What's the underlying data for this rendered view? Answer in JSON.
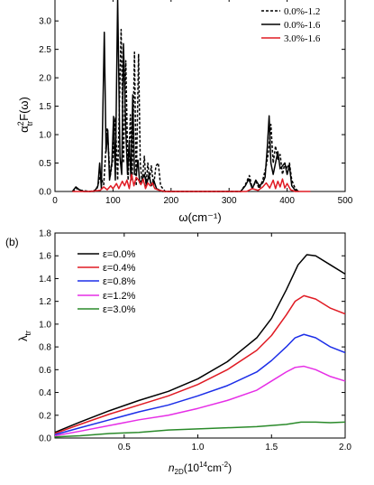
{
  "chart_data": [
    {
      "type": "line",
      "panel_label": "",
      "xlabel": "ω(cm⁻¹)",
      "ylabel": "α²trF(ω)",
      "ylabel_main": "α",
      "ylabel_sup": "2",
      "ylabel_sub": "tr",
      "ylabel_tail": "F(ω)",
      "xlim": [
        0,
        500
      ],
      "ylim": [
        0,
        3.4
      ],
      "xticks": [
        "0",
        "100",
        "200",
        "300",
        "400",
        "500"
      ],
      "xtick_values": [
        0,
        100,
        200,
        300,
        400,
        500
      ],
      "yticks": [
        "0.0",
        "0.5",
        "1.0",
        "1.5",
        "2.0",
        "2.5",
        "3.0"
      ],
      "ytick_values": [
        0,
        0.5,
        1.0,
        1.5,
        2.0,
        2.5,
        3.0
      ],
      "legend_position": "top-right",
      "series": [
        {
          "name": "0.0%-1.2",
          "color": "#000000",
          "dash": "dashed",
          "points": [
            [
              30,
              0
            ],
            [
              38,
              0.05
            ],
            [
              45,
              0.02
            ],
            [
              60,
              0
            ],
            [
              72,
              0.03
            ],
            [
              78,
              0.28
            ],
            [
              84,
              0.12
            ],
            [
              90,
              1.12
            ],
            [
              95,
              0.25
            ],
            [
              100,
              0.6
            ],
            [
              104,
              1.3
            ],
            [
              108,
              0.2
            ],
            [
              114,
              2.85
            ],
            [
              118,
              0.5
            ],
            [
              122,
              2.3
            ],
            [
              126,
              0.2
            ],
            [
              130,
              1.35
            ],
            [
              133,
              0.2
            ],
            [
              137,
              2.45
            ],
            [
              140,
              0.1
            ],
            [
              144,
              2.42
            ],
            [
              147,
              0.5
            ],
            [
              150,
              0.15
            ],
            [
              154,
              0.62
            ],
            [
              157,
              0.1
            ],
            [
              160,
              0.5
            ],
            [
              163,
              0.2
            ],
            [
              166,
              0.45
            ],
            [
              170,
              0.1
            ],
            [
              174,
              0.45
            ],
            [
              178,
              0.5
            ],
            [
              182,
              0.1
            ],
            [
              190,
              0
            ],
            [
              320,
              0
            ],
            [
              328,
              0.12
            ],
            [
              335,
              0.28
            ],
            [
              340,
              0.05
            ],
            [
              346,
              0.18
            ],
            [
              352,
              0.05
            ],
            [
              358,
              0.2
            ],
            [
              364,
              0.45
            ],
            [
              368,
              0.7
            ],
            [
              372,
              1.18
            ],
            [
              376,
              0.5
            ],
            [
              380,
              0.8
            ],
            [
              384,
              0.55
            ],
            [
              388,
              0.65
            ],
            [
              392,
              0.3
            ],
            [
              396,
              0.5
            ],
            [
              400,
              0.4
            ],
            [
              404,
              0.5
            ],
            [
              408,
              0.2
            ],
            [
              414,
              0.05
            ],
            [
              420,
              0
            ]
          ]
        },
        {
          "name": "0.0%-1.6",
          "color": "#000000",
          "dash": "solid",
          "points": [
            [
              30,
              0
            ],
            [
              36,
              0.08
            ],
            [
              42,
              0.03
            ],
            [
              50,
              0
            ],
            [
              68,
              0
            ],
            [
              74,
              0.1
            ],
            [
              77,
              0.5
            ],
            [
              80,
              0.05
            ],
            [
              85,
              2.8
            ],
            [
              88,
              0.7
            ],
            [
              91,
              1.08
            ],
            [
              94,
              0.2
            ],
            [
              98,
              0.5
            ],
            [
              101,
              1.32
            ],
            [
              104,
              0.2
            ],
            [
              108,
              3.4
            ],
            [
              112,
              0.6
            ],
            [
              115,
              0.3
            ],
            [
              118,
              2.6
            ],
            [
              122,
              1.1
            ],
            [
              125,
              0.3
            ],
            [
              128,
              0.9
            ],
            [
              131,
              0.2
            ],
            [
              134,
              1.7
            ],
            [
              137,
              0.3
            ],
            [
              140,
              0.3
            ],
            [
              143,
              0.55
            ],
            [
              146,
              0.15
            ],
            [
              150,
              0.2
            ],
            [
              154,
              0.3
            ],
            [
              158,
              0.12
            ],
            [
              162,
              0.3
            ],
            [
              166,
              0.1
            ],
            [
              170,
              0.2
            ],
            [
              175,
              0.05
            ],
            [
              185,
              0
            ],
            [
              320,
              0
            ],
            [
              328,
              0.1
            ],
            [
              334,
              0.22
            ],
            [
              340,
              0.05
            ],
            [
              346,
              0.2
            ],
            [
              352,
              0.1
            ],
            [
              358,
              0.15
            ],
            [
              362,
              0.25
            ],
            [
              366,
              0.8
            ],
            [
              369,
              1.33
            ],
            [
              372,
              0.5
            ],
            [
              376,
              0.3
            ],
            [
              380,
              0.5
            ],
            [
              384,
              0.7
            ],
            [
              388,
              0.4
            ],
            [
              392,
              0.45
            ],
            [
              396,
              0.5
            ],
            [
              400,
              0.3
            ],
            [
              404,
              0.45
            ],
            [
              408,
              0.1
            ],
            [
              414,
              0.02
            ],
            [
              420,
              0
            ]
          ]
        },
        {
          "name": "3.0%-1.6",
          "color": "#e01b24",
          "dash": "solid",
          "points": [
            [
              30,
              0
            ],
            [
              60,
              0
            ],
            [
              78,
              0.02
            ],
            [
              84,
              0.08
            ],
            [
              90,
              0.03
            ],
            [
              96,
              0.1
            ],
            [
              100,
              0.05
            ],
            [
              106,
              0.14
            ],
            [
              110,
              0.05
            ],
            [
              116,
              0.18
            ],
            [
              120,
              0.1
            ],
            [
              124,
              0.2
            ],
            [
              128,
              0.05
            ],
            [
              132,
              0.3
            ],
            [
              136,
              0.1
            ],
            [
              140,
              0.25
            ],
            [
              144,
              0.2
            ],
            [
              148,
              0.12
            ],
            [
              152,
              0.22
            ],
            [
              156,
              0.05
            ],
            [
              160,
              0.15
            ],
            [
              164,
              0.1
            ],
            [
              168,
              0.15
            ],
            [
              172,
              0.05
            ],
            [
              180,
              0.02
            ],
            [
              190,
              0
            ],
            [
              330,
              0
            ],
            [
              340,
              0.05
            ],
            [
              350,
              0.02
            ],
            [
              358,
              0.08
            ],
            [
              364,
              0.15
            ],
            [
              370,
              0.06
            ],
            [
              376,
              0.2
            ],
            [
              380,
              0.05
            ],
            [
              384,
              0.18
            ],
            [
              388,
              0.08
            ],
            [
              392,
              0.22
            ],
            [
              396,
              0.06
            ],
            [
              400,
              0.14
            ],
            [
              406,
              0.03
            ],
            [
              414,
              0
            ],
            [
              440,
              0
            ]
          ]
        }
      ]
    },
    {
      "type": "line",
      "panel_label": "(b)",
      "xlabel": "n2D(10¹⁴cm⁻²)",
      "xlabel_main": "n",
      "xlabel_sub": "2D",
      "xlabel_tail": "(10",
      "xlabel_sup": "14",
      "xlabel_unit": "cm",
      "xlabel_unit_sup": "-2",
      "xlabel_close": ")",
      "ylabel": "λtr",
      "ylabel_main": "λ",
      "ylabel_sub": "tr",
      "xlim": [
        0.03,
        2.0
      ],
      "ylim": [
        0,
        1.8
      ],
      "xticks": [
        "0.5",
        "1.0",
        "1.5",
        "2.0"
      ],
      "xtick_values": [
        0.5,
        1.0,
        1.5,
        2.0
      ],
      "yticks": [
        "0.0",
        "0.2",
        "0.4",
        "0.6",
        "0.8",
        "1.0",
        "1.2",
        "1.4",
        "1.6",
        "1.8"
      ],
      "ytick_values": [
        0,
        0.2,
        0.4,
        0.6,
        0.8,
        1.0,
        1.2,
        1.4,
        1.6,
        1.8
      ],
      "legend_position": "top-left",
      "series": [
        {
          "name": "ε=0.0%",
          "color": "#000000",
          "points": [
            [
              0.03,
              0.05
            ],
            [
              0.2,
              0.14
            ],
            [
              0.4,
              0.24
            ],
            [
              0.6,
              0.33
            ],
            [
              0.8,
              0.41
            ],
            [
              1.0,
              0.52
            ],
            [
              1.2,
              0.67
            ],
            [
              1.4,
              0.88
            ],
            [
              1.5,
              1.05
            ],
            [
              1.6,
              1.3
            ],
            [
              1.68,
              1.52
            ],
            [
              1.74,
              1.61
            ],
            [
              1.8,
              1.6
            ],
            [
              1.9,
              1.52
            ],
            [
              2.0,
              1.44
            ]
          ]
        },
        {
          "name": "ε=0.4%",
          "color": "#e01b24",
          "points": [
            [
              0.03,
              0.04
            ],
            [
              0.2,
              0.12
            ],
            [
              0.4,
              0.21
            ],
            [
              0.6,
              0.29
            ],
            [
              0.8,
              0.37
            ],
            [
              1.0,
              0.47
            ],
            [
              1.2,
              0.6
            ],
            [
              1.4,
              0.77
            ],
            [
              1.5,
              0.9
            ],
            [
              1.6,
              1.08
            ],
            [
              1.66,
              1.2
            ],
            [
              1.72,
              1.25
            ],
            [
              1.8,
              1.22
            ],
            [
              1.9,
              1.14
            ],
            [
              2.0,
              1.09
            ]
          ]
        },
        {
          "name": "ε=0.8%",
          "color": "#1c2ee8",
          "points": [
            [
              0.03,
              0.03
            ],
            [
              0.2,
              0.09
            ],
            [
              0.4,
              0.16
            ],
            [
              0.6,
              0.23
            ],
            [
              0.8,
              0.29
            ],
            [
              1.0,
              0.37
            ],
            [
              1.2,
              0.46
            ],
            [
              1.4,
              0.58
            ],
            [
              1.5,
              0.68
            ],
            [
              1.6,
              0.8
            ],
            [
              1.66,
              0.88
            ],
            [
              1.72,
              0.91
            ],
            [
              1.8,
              0.88
            ],
            [
              1.9,
              0.8
            ],
            [
              2.0,
              0.75
            ]
          ]
        },
        {
          "name": "ε=1.2%",
          "color": "#e62ee6",
          "points": [
            [
              0.03,
              0.02
            ],
            [
              0.2,
              0.06
            ],
            [
              0.4,
              0.11
            ],
            [
              0.6,
              0.16
            ],
            [
              0.8,
              0.2
            ],
            [
              1.0,
              0.26
            ],
            [
              1.2,
              0.33
            ],
            [
              1.4,
              0.42
            ],
            [
              1.5,
              0.5
            ],
            [
              1.6,
              0.58
            ],
            [
              1.66,
              0.62
            ],
            [
              1.72,
              0.63
            ],
            [
              1.8,
              0.6
            ],
            [
              1.9,
              0.54
            ],
            [
              2.0,
              0.5
            ]
          ]
        },
        {
          "name": "ε=3.0%",
          "color": "#2a8a2a",
          "points": [
            [
              0.03,
              0.01
            ],
            [
              0.2,
              0.02
            ],
            [
              0.4,
              0.04
            ],
            [
              0.6,
              0.05
            ],
            [
              0.8,
              0.07
            ],
            [
              1.0,
              0.08
            ],
            [
              1.2,
              0.09
            ],
            [
              1.4,
              0.1
            ],
            [
              1.6,
              0.12
            ],
            [
              1.7,
              0.14
            ],
            [
              1.8,
              0.14
            ],
            [
              1.9,
              0.135
            ],
            [
              2.0,
              0.14
            ]
          ]
        }
      ]
    }
  ]
}
